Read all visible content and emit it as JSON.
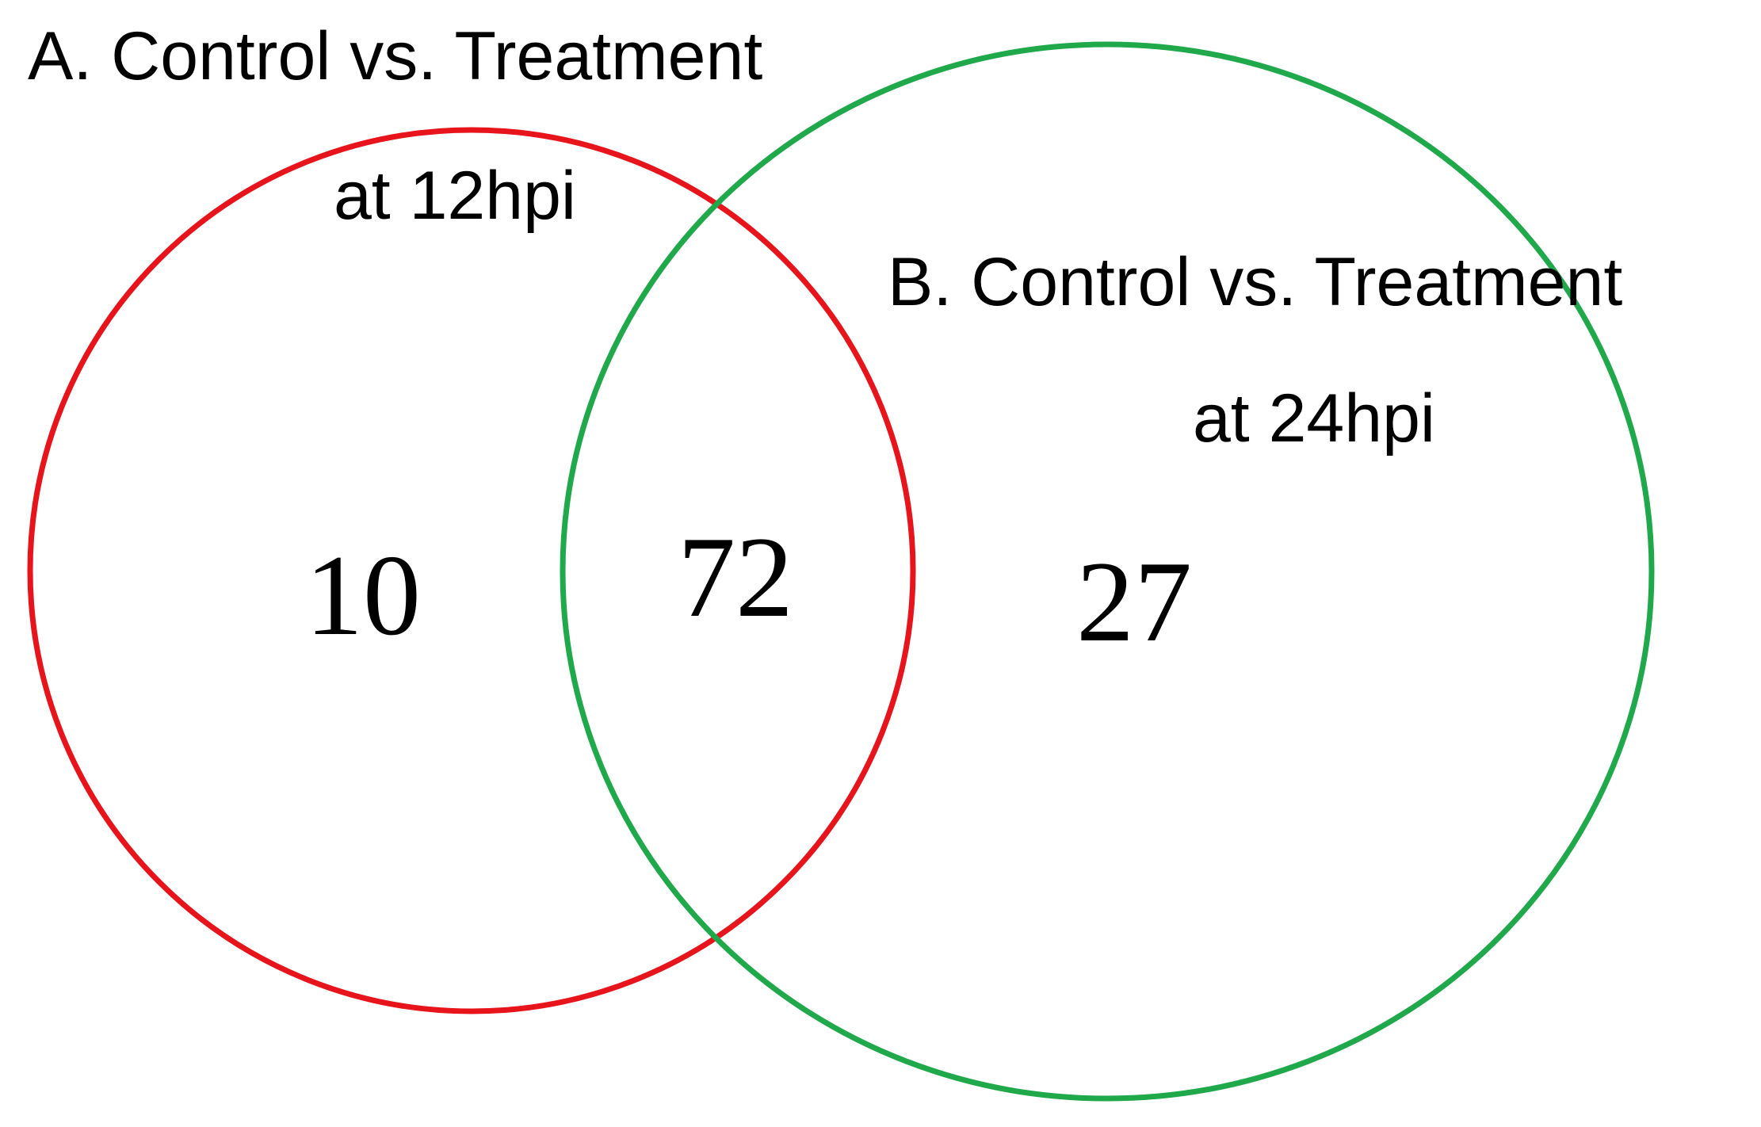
{
  "chart_data": {
    "type": "venn",
    "sets": [
      {
        "label": [
          "A. Control vs. Treatment",
          "at 12hpi"
        ],
        "color": "#e8141b"
      },
      {
        "label": [
          "B. Control vs. Treatment",
          "at 24hpi"
        ],
        "color": "#1fa94a"
      }
    ],
    "values": [
      10,
      72,
      27
    ]
  }
}
